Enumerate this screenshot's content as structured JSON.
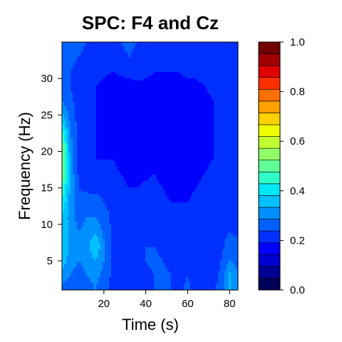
{
  "chart_data": {
    "type": "heatmap",
    "title": "SPC: F4 and Cz",
    "xlabel": "Time (s)",
    "ylabel": "Frequency (Hz)",
    "xlim": [
      0,
      84
    ],
    "ylim": [
      1,
      35
    ],
    "x_ticks": [
      20,
      40,
      60,
      80
    ],
    "x_tick_labels": [
      "20",
      "40",
      "60",
      "80"
    ],
    "y_ticks": [
      5,
      10,
      15,
      20,
      25,
      30
    ],
    "y_tick_labels": [
      "5",
      "10",
      "15",
      "20",
      "25",
      "30"
    ],
    "colorbar": {
      "range": [
        0,
        1
      ],
      "levels": 20,
      "ticks": [
        0.0,
        0.2,
        0.4,
        0.6,
        0.8,
        1.0
      ],
      "tick_labels": [
        "0.0",
        "0.2",
        "0.4",
        "0.6",
        "0.8",
        "1.0"
      ],
      "colors": [
        "#00005a",
        "#000096",
        "#0000d2",
        "#0000ff",
        "#0030ff",
        "#0060ff",
        "#0090ff",
        "#00c0ff",
        "#00e8f8",
        "#30ffc8",
        "#60ff98",
        "#90ff68",
        "#c0ff30",
        "#f0ff00",
        "#ffd000",
        "#ffa000",
        "#ff7000",
        "#ff3000",
        "#e00000",
        "#a00000",
        "#700000"
      ]
    },
    "x_grid": [
      0,
      4,
      8,
      12,
      16,
      20,
      24,
      28,
      32,
      36,
      40,
      44,
      48,
      52,
      56,
      60,
      64,
      68,
      72,
      76,
      80,
      84
    ],
    "y_grid": [
      1,
      3,
      5,
      7,
      9,
      11,
      13,
      15,
      17,
      19,
      21,
      23,
      25,
      27,
      29,
      31,
      33,
      35
    ],
    "values": [
      [
        0.28,
        0.25,
        0.25,
        0.27,
        0.3,
        0.26,
        0.24,
        0.22,
        0.22,
        0.23,
        0.24,
        0.25,
        0.26,
        0.25,
        0.24,
        0.26,
        0.23,
        0.22,
        0.23,
        0.28,
        0.36,
        0.32
      ],
      [
        0.34,
        0.3,
        0.28,
        0.3,
        0.32,
        0.28,
        0.24,
        0.22,
        0.22,
        0.23,
        0.24,
        0.25,
        0.26,
        0.25,
        0.24,
        0.25,
        0.23,
        0.22,
        0.23,
        0.26,
        0.36,
        0.3
      ],
      [
        0.38,
        0.32,
        0.3,
        0.32,
        0.35,
        0.3,
        0.24,
        0.22,
        0.22,
        0.23,
        0.25,
        0.26,
        0.25,
        0.24,
        0.23,
        0.24,
        0.22,
        0.22,
        0.23,
        0.25,
        0.3,
        0.28
      ],
      [
        0.4,
        0.34,
        0.31,
        0.33,
        0.4,
        0.31,
        0.24,
        0.22,
        0.22,
        0.23,
        0.25,
        0.25,
        0.24,
        0.23,
        0.22,
        0.23,
        0.22,
        0.22,
        0.23,
        0.24,
        0.27,
        0.26
      ],
      [
        0.4,
        0.33,
        0.3,
        0.32,
        0.34,
        0.29,
        0.24,
        0.22,
        0.22,
        0.23,
        0.24,
        0.24,
        0.23,
        0.22,
        0.22,
        0.22,
        0.22,
        0.22,
        0.23,
        0.24,
        0.25,
        0.24
      ],
      [
        0.4,
        0.32,
        0.28,
        0.3,
        0.3,
        0.27,
        0.24,
        0.22,
        0.21,
        0.22,
        0.23,
        0.23,
        0.22,
        0.21,
        0.21,
        0.21,
        0.21,
        0.22,
        0.23,
        0.24,
        0.24,
        0.23
      ],
      [
        0.44,
        0.33,
        0.26,
        0.27,
        0.27,
        0.25,
        0.23,
        0.22,
        0.21,
        0.21,
        0.22,
        0.22,
        0.21,
        0.2,
        0.2,
        0.2,
        0.21,
        0.22,
        0.23,
        0.24,
        0.24,
        0.23
      ],
      [
        0.5,
        0.34,
        0.25,
        0.24,
        0.24,
        0.23,
        0.22,
        0.21,
        0.2,
        0.2,
        0.21,
        0.21,
        0.2,
        0.19,
        0.19,
        0.19,
        0.2,
        0.21,
        0.22,
        0.23,
        0.23,
        0.22
      ],
      [
        0.55,
        0.34,
        0.24,
        0.22,
        0.22,
        0.21,
        0.21,
        0.2,
        0.19,
        0.19,
        0.19,
        0.2,
        0.19,
        0.18,
        0.18,
        0.18,
        0.19,
        0.2,
        0.21,
        0.22,
        0.22,
        0.21
      ],
      [
        0.56,
        0.33,
        0.23,
        0.21,
        0.2,
        0.2,
        0.2,
        0.19,
        0.18,
        0.18,
        0.18,
        0.19,
        0.18,
        0.18,
        0.18,
        0.18,
        0.18,
        0.19,
        0.2,
        0.21,
        0.21,
        0.2
      ],
      [
        0.54,
        0.32,
        0.23,
        0.21,
        0.2,
        0.19,
        0.19,
        0.18,
        0.17,
        0.17,
        0.18,
        0.18,
        0.18,
        0.18,
        0.18,
        0.18,
        0.18,
        0.19,
        0.2,
        0.21,
        0.21,
        0.2
      ],
      [
        0.46,
        0.3,
        0.23,
        0.21,
        0.2,
        0.19,
        0.18,
        0.17,
        0.16,
        0.17,
        0.18,
        0.18,
        0.18,
        0.18,
        0.18,
        0.18,
        0.18,
        0.19,
        0.2,
        0.21,
        0.21,
        0.2
      ],
      [
        0.36,
        0.28,
        0.23,
        0.21,
        0.2,
        0.19,
        0.18,
        0.17,
        0.16,
        0.17,
        0.18,
        0.18,
        0.18,
        0.18,
        0.18,
        0.18,
        0.18,
        0.19,
        0.2,
        0.21,
        0.21,
        0.2
      ],
      [
        0.3,
        0.26,
        0.23,
        0.21,
        0.2,
        0.19,
        0.18,
        0.17,
        0.17,
        0.18,
        0.18,
        0.18,
        0.18,
        0.18,
        0.18,
        0.18,
        0.18,
        0.19,
        0.2,
        0.21,
        0.21,
        0.2
      ],
      [
        0.27,
        0.25,
        0.23,
        0.21,
        0.2,
        0.19,
        0.18,
        0.18,
        0.18,
        0.19,
        0.19,
        0.19,
        0.19,
        0.19,
        0.19,
        0.19,
        0.19,
        0.2,
        0.21,
        0.22,
        0.22,
        0.21
      ],
      [
        0.26,
        0.25,
        0.24,
        0.23,
        0.22,
        0.21,
        0.2,
        0.21,
        0.22,
        0.22,
        0.21,
        0.2,
        0.2,
        0.2,
        0.2,
        0.21,
        0.21,
        0.22,
        0.22,
        0.23,
        0.23,
        0.22
      ],
      [
        0.26,
        0.26,
        0.25,
        0.24,
        0.24,
        0.23,
        0.23,
        0.24,
        0.25,
        0.24,
        0.23,
        0.22,
        0.22,
        0.22,
        0.22,
        0.23,
        0.23,
        0.23,
        0.23,
        0.24,
        0.24,
        0.23
      ],
      [
        0.27,
        0.27,
        0.26,
        0.25,
        0.25,
        0.24,
        0.24,
        0.25,
        0.26,
        0.25,
        0.24,
        0.24,
        0.24,
        0.24,
        0.24,
        0.24,
        0.24,
        0.24,
        0.24,
        0.25,
        0.25,
        0.24
      ]
    ]
  }
}
